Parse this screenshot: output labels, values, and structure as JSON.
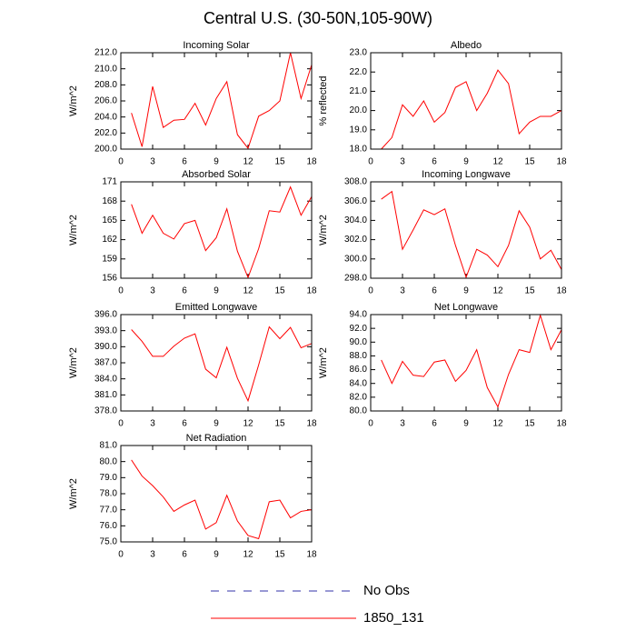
{
  "title": "Central U.S. (30-50N,105-90W)",
  "legend": [
    {
      "name": "No Obs",
      "color": "#3333aa",
      "dash": true
    },
    {
      "name": "1850_131",
      "color": "#ff0000",
      "dash": false
    }
  ],
  "chart_data": [
    {
      "type": "line",
      "title": "Incoming Solar",
      "ylabel": "W/m^2",
      "x": [
        1,
        2,
        3,
        4,
        5,
        6,
        7,
        8,
        9,
        10,
        11,
        12,
        13,
        14,
        15,
        16,
        17,
        18
      ],
      "series": [
        {
          "name": "1850_131",
          "color": "#ff0000",
          "values": [
            204.5,
            200.3,
            207.8,
            202.7,
            203.6,
            203.7,
            205.7,
            203.0,
            206.3,
            208.4,
            201.8,
            200.1,
            204.1,
            204.8,
            206.0,
            212.0,
            206.3,
            210.5
          ]
        }
      ],
      "xlim": [
        0,
        18
      ],
      "xticks": [
        0,
        3,
        6,
        9,
        12,
        15,
        18
      ],
      "ylim": [
        200,
        212
      ],
      "yticks": [
        {
          "value": 200,
          "label": "200.0"
        },
        {
          "value": 202,
          "label": "202.0"
        },
        {
          "value": 204,
          "label": "204.0"
        },
        {
          "value": 206,
          "label": "206.0"
        },
        {
          "value": 208,
          "label": "208.0"
        },
        {
          "value": 210,
          "label": "210.0"
        },
        {
          "value": 212,
          "label": "212.0"
        }
      ]
    },
    {
      "type": "line",
      "title": "Albedo",
      "ylabel": "% reflected",
      "x": [
        1,
        2,
        3,
        4,
        5,
        6,
        7,
        8,
        9,
        10,
        11,
        12,
        13,
        14,
        15,
        16,
        17,
        18
      ],
      "series": [
        {
          "name": "1850_131",
          "color": "#ff0000",
          "values": [
            18.0,
            18.6,
            20.3,
            19.7,
            20.5,
            19.4,
            19.9,
            21.2,
            21.5,
            20.0,
            20.9,
            22.1,
            21.4,
            18.8,
            19.4,
            19.7,
            19.7,
            20.0
          ]
        }
      ],
      "xlim": [
        0,
        18
      ],
      "xticks": [
        0,
        3,
        6,
        9,
        12,
        15,
        18
      ],
      "ylim": [
        18,
        23
      ],
      "yticks": [
        {
          "value": 18,
          "label": "18.0"
        },
        {
          "value": 19,
          "label": "19.0"
        },
        {
          "value": 20,
          "label": "20.0"
        },
        {
          "value": 21,
          "label": "21.0"
        },
        {
          "value": 22,
          "label": "22.0"
        },
        {
          "value": 23,
          "label": "23.0"
        }
      ]
    },
    {
      "type": "line",
      "title": "Absorbed Solar",
      "ylabel": "W/m^2",
      "x": [
        1,
        2,
        3,
        4,
        5,
        6,
        7,
        8,
        9,
        10,
        11,
        12,
        13,
        14,
        15,
        16,
        17,
        18
      ],
      "series": [
        {
          "name": "1850_131",
          "color": "#ff0000",
          "values": [
            167.5,
            163.0,
            165.8,
            163.0,
            162.1,
            164.5,
            165.0,
            160.3,
            162.3,
            166.8,
            160.2,
            156.1,
            160.6,
            166.5,
            166.3,
            170.2,
            165.8,
            168.7
          ]
        }
      ],
      "xlim": [
        0,
        18
      ],
      "xticks": [
        0,
        3,
        6,
        9,
        12,
        15,
        18
      ],
      "ylim": [
        156,
        171
      ],
      "yticks": [
        156,
        159,
        162,
        165,
        168,
        171
      ]
    },
    {
      "type": "line",
      "title": "Incoming Longwave",
      "ylabel": "W/m^2",
      "x": [
        1,
        2,
        3,
        4,
        5,
        6,
        7,
        8,
        9,
        10,
        11,
        12,
        13,
        14,
        15,
        16,
        17,
        18
      ],
      "series": [
        {
          "name": "1850_131",
          "color": "#ff0000",
          "values": [
            306.2,
            307.0,
            301.0,
            303.0,
            305.1,
            304.6,
            305.2,
            301.4,
            298.1,
            301.0,
            300.4,
            299.2,
            301.4,
            305.0,
            303.3,
            300.0,
            300.9,
            298.9
          ]
        }
      ],
      "xlim": [
        0,
        18
      ],
      "xticks": [
        0,
        3,
        6,
        9,
        12,
        15,
        18
      ],
      "ylim": [
        298,
        308
      ],
      "yticks": [
        {
          "value": 298,
          "label": "298.0"
        },
        {
          "value": 300,
          "label": "300.0"
        },
        {
          "value": 302,
          "label": "302.0"
        },
        {
          "value": 304,
          "label": "304.0"
        },
        {
          "value": 306,
          "label": "306.0"
        },
        {
          "value": 308,
          "label": "308.0"
        }
      ]
    },
    {
      "type": "line",
      "title": "Emitted Longwave",
      "ylabel": "W/m^2",
      "x": [
        1,
        2,
        3,
        4,
        5,
        6,
        7,
        8,
        9,
        10,
        11,
        12,
        13,
        14,
        15,
        16,
        17,
        18
      ],
      "series": [
        {
          "name": "1850_131",
          "color": "#ff0000",
          "values": [
            393.2,
            391.0,
            388.2,
            388.2,
            390.1,
            391.6,
            392.4,
            385.8,
            384.2,
            389.9,
            384.1,
            379.9,
            386.6,
            393.7,
            391.5,
            393.6,
            389.8,
            390.6
          ]
        }
      ],
      "xlim": [
        0,
        18
      ],
      "xticks": [
        0,
        3,
        6,
        9,
        12,
        15,
        18
      ],
      "ylim": [
        378,
        396
      ],
      "yticks": [
        {
          "value": 378,
          "label": "378.0"
        },
        {
          "value": 381,
          "label": "381.0"
        },
        {
          "value": 384,
          "label": "384.0"
        },
        {
          "value": 387,
          "label": "387.0"
        },
        {
          "value": 390,
          "label": "390.0"
        },
        {
          "value": 393,
          "label": "393.0"
        },
        {
          "value": 396,
          "label": "396.0"
        }
      ]
    },
    {
      "type": "line",
      "title": "Net Longwave",
      "ylabel": "W/m^2",
      "x": [
        1,
        2,
        3,
        4,
        5,
        6,
        7,
        8,
        9,
        10,
        11,
        12,
        13,
        14,
        15,
        16,
        17,
        18
      ],
      "series": [
        {
          "name": "1850_131",
          "color": "#ff0000",
          "values": [
            87.4,
            84.0,
            87.2,
            85.2,
            85.0,
            87.1,
            87.4,
            84.3,
            85.9,
            88.9,
            83.4,
            80.6,
            85.3,
            88.9,
            88.5,
            93.9,
            88.9,
            91.8
          ]
        }
      ],
      "xlim": [
        0,
        18
      ],
      "xticks": [
        0,
        3,
        6,
        9,
        12,
        15,
        18
      ],
      "ylim": [
        80,
        94
      ],
      "yticks": [
        {
          "value": 80,
          "label": "80.0"
        },
        {
          "value": 82,
          "label": "82.0"
        },
        {
          "value": 84,
          "label": "84.0"
        },
        {
          "value": 86,
          "label": "86.0"
        },
        {
          "value": 88,
          "label": "88.0"
        },
        {
          "value": 90,
          "label": "90.0"
        },
        {
          "value": 92,
          "label": "92.0"
        },
        {
          "value": 94,
          "label": "94.0"
        }
      ]
    },
    {
      "type": "line",
      "title": "Net Radiation",
      "ylabel": "W/m^2",
      "x": [
        1,
        2,
        3,
        4,
        5,
        6,
        7,
        8,
        9,
        10,
        11,
        12,
        13,
        14,
        15,
        16,
        17,
        18
      ],
      "series": [
        {
          "name": "1850_131",
          "color": "#ff0000",
          "values": [
            80.1,
            79.1,
            78.5,
            77.8,
            76.9,
            77.3,
            77.6,
            75.8,
            76.2,
            77.9,
            76.3,
            75.4,
            75.2,
            77.5,
            77.6,
            76.5,
            76.9,
            77.0
          ]
        }
      ],
      "xlim": [
        0,
        18
      ],
      "xticks": [
        0,
        3,
        6,
        9,
        12,
        15,
        18
      ],
      "ylim": [
        75,
        81
      ],
      "yticks": [
        {
          "value": 75,
          "label": "75.0"
        },
        {
          "value": 76,
          "label": "76.0"
        },
        {
          "value": 77,
          "label": "77.0"
        },
        {
          "value": 78,
          "label": "78.0"
        },
        {
          "value": 79,
          "label": "79.0"
        },
        {
          "value": 80,
          "label": "80.0"
        },
        {
          "value": 81,
          "label": "81.0"
        }
      ]
    }
  ]
}
